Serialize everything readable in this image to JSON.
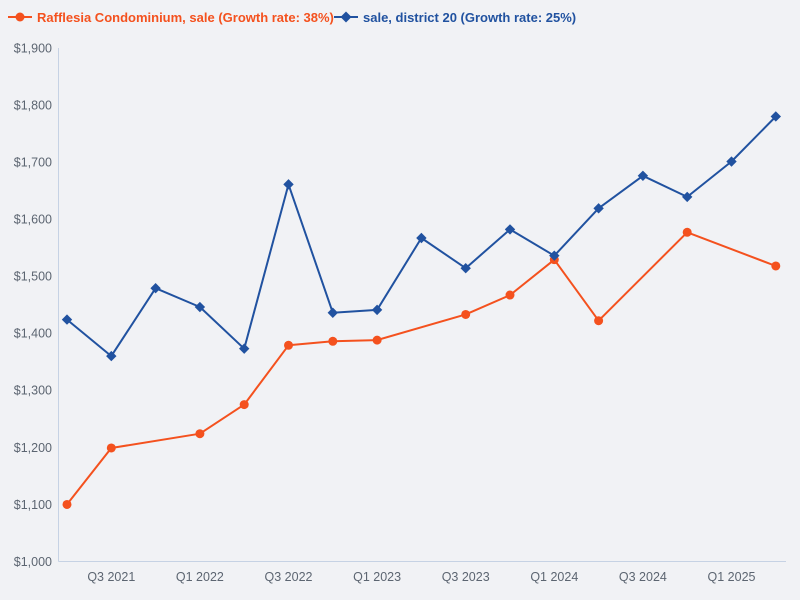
{
  "colors": {
    "background": "#f1f2f5",
    "axis_line": "#c6d2e4",
    "tick_text": "#5c6571",
    "series_orange": "#f4511e",
    "series_blue": "#2152a0"
  },
  "chart_data": {
    "type": "line",
    "categories": [
      "Q2 2021",
      "Q3 2021",
      "Q4 2021",
      "Q1 2022",
      "Q2 2022",
      "Q3 2022",
      "Q4 2022",
      "Q1 2023",
      "Q2 2023",
      "Q3 2023",
      "Q4 2023",
      "Q1 2024",
      "Q2 2024",
      "Q3 2024",
      "Q4 2024",
      "Q1 2025",
      "Q2 2025"
    ],
    "x_axis": {
      "tick_indices": [
        1,
        3,
        5,
        7,
        9,
        11,
        13,
        15
      ],
      "tick_labels": [
        "Q3 2021",
        "Q1 2022",
        "Q3 2022",
        "Q1 2023",
        "Q3 2023",
        "Q1 2024",
        "Q3 2024",
        "Q1 2025"
      ]
    },
    "y_axis": {
      "range": [
        1000,
        1900
      ],
      "tick_values": [
        1000,
        1100,
        1200,
        1300,
        1400,
        1500,
        1600,
        1700,
        1800,
        1900
      ],
      "tick_labels": [
        "$1,000",
        "$1,100",
        "$1,200",
        "$1,300",
        "$1,400",
        "$1,500",
        "$1,600",
        "$1,700",
        "$1,800",
        "$1,900"
      ]
    },
    "series": [
      {
        "name": "Rafflesia Condominium, sale (Growth rate: 38%)",
        "color": "#f4511e",
        "marker": "circle",
        "growth_rate": "38%",
        "values": [
          1100,
          1199,
          null,
          1224,
          1275,
          1379,
          1386,
          1388,
          null,
          1433,
          1467,
          1529,
          1422,
          null,
          1577,
          null,
          1518
        ]
      },
      {
        "name": "sale, district 20 (Growth rate: 25%)",
        "color": "#2152a0",
        "marker": "diamond",
        "growth_rate": "25%",
        "values": [
          1424,
          1360,
          1479,
          1446,
          1373,
          1661,
          1436,
          1441,
          1567,
          1514,
          1582,
          1536,
          1619,
          1676,
          1639,
          1701,
          1780
        ]
      }
    ],
    "grid": false,
    "legend_position": "top"
  }
}
